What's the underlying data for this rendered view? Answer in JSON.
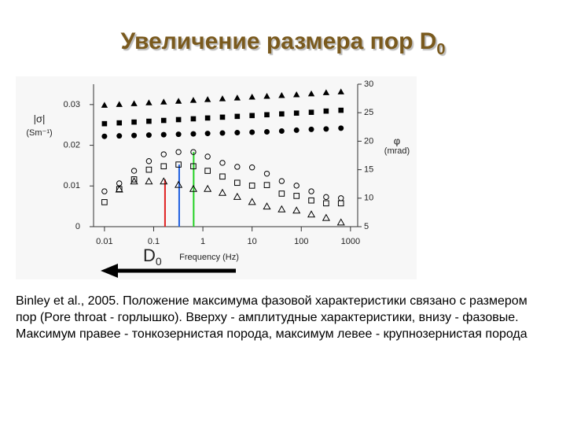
{
  "title": "Увеличение размера пор D",
  "title_subscript": "0",
  "caption": "Binley et al., 2005. Положение максимума фазовой характеристики связано с размером пор (Pore throat - горлышко). Вверху - амплитудные характеристики, внизу - фазовые. Максимум правее - тонкозернистая порода, максимум левее - крупнозернистая порода",
  "chart_data": {
    "type": "scatter",
    "xlabel": "Frequency (Hz)",
    "ylabel": "|σ|",
    "yunit": "(Sm⁻¹)",
    "y2label": "φ",
    "y2unit": "(mrad)",
    "annotation": "D",
    "annotation_subscript": "0",
    "xlog": true,
    "xlim": [
      0.006,
      1400
    ],
    "xticks": [
      0.01,
      0.1,
      1,
      10,
      100,
      1000
    ],
    "ylim": [
      0,
      0.035
    ],
    "yticks": [
      0,
      0.01,
      0.02,
      0.03
    ],
    "y2lim": [
      5,
      30
    ],
    "y2ticks": [
      5,
      10,
      15,
      20,
      25,
      30
    ],
    "x": [
      0.01,
      0.02,
      0.04,
      0.08,
      0.16,
      0.32,
      0.64,
      1.25,
      2.5,
      5,
      10,
      20,
      40,
      80,
      160,
      320,
      640
    ],
    "series": [
      {
        "marker": "triangle",
        "filled": true,
        "color": "#000000",
        "axis": "y",
        "values": [
          0.0298,
          0.03,
          0.0302,
          0.0304,
          0.0306,
          0.0308,
          0.031,
          0.0312,
          0.0314,
          0.0316,
          0.0318,
          0.032,
          0.0322,
          0.0324,
          0.0326,
          0.0329,
          0.0331
        ]
      },
      {
        "marker": "square",
        "filled": true,
        "color": "#000000",
        "axis": "y",
        "values": [
          0.0253,
          0.0255,
          0.0257,
          0.0259,
          0.0261,
          0.0263,
          0.0265,
          0.0267,
          0.0269,
          0.0271,
          0.0273,
          0.0275,
          0.0277,
          0.0279,
          0.0281,
          0.0284,
          0.0286
        ]
      },
      {
        "marker": "circle",
        "filled": true,
        "color": "#000000",
        "axis": "y",
        "values": [
          0.0222,
          0.0223,
          0.0224,
          0.0225,
          0.0226,
          0.0227,
          0.0228,
          0.0229,
          0.023,
          0.0231,
          0.0232,
          0.0233,
          0.0235,
          0.0237,
          0.0239,
          0.024,
          0.0242
        ]
      },
      {
        "marker": "circle",
        "filled": false,
        "color": "#000000",
        "axis": "y2",
        "values": [
          11.2,
          12.6,
          14.8,
          16.5,
          17.7,
          18.1,
          18.1,
          17.3,
          16.2,
          15.5,
          15.4,
          14.3,
          13.0,
          12.2,
          11.2,
          10.2,
          10.0
        ]
      },
      {
        "marker": "square",
        "filled": false,
        "color": "#000000",
        "axis": "y2",
        "values": [
          9.3,
          11.6,
          13.3,
          15.0,
          15.6,
          15.9,
          15.6,
          14.8,
          13.8,
          12.7,
          12.2,
          12.3,
          10.8,
          10.4,
          9.6,
          9.1,
          9.1
        ]
      },
      {
        "marker": "triangle",
        "filled": false,
        "color": "#000000",
        "axis": "y2",
        "values": [
          null,
          11.5,
          12.9,
          12.9,
          12.9,
          12.3,
          11.6,
          11.6,
          10.9,
          10.2,
          9.3,
          8.5,
          8.0,
          7.8,
          7.1,
          6.5,
          5.7
        ]
      }
    ],
    "markers": [
      {
        "x": 0.17,
        "y": 13.3,
        "color": "#e02020"
      },
      {
        "x": 0.33,
        "y": 15.9,
        "color": "#2060e0"
      },
      {
        "x": 0.65,
        "y": 18.1,
        "color": "#20d020"
      }
    ]
  }
}
